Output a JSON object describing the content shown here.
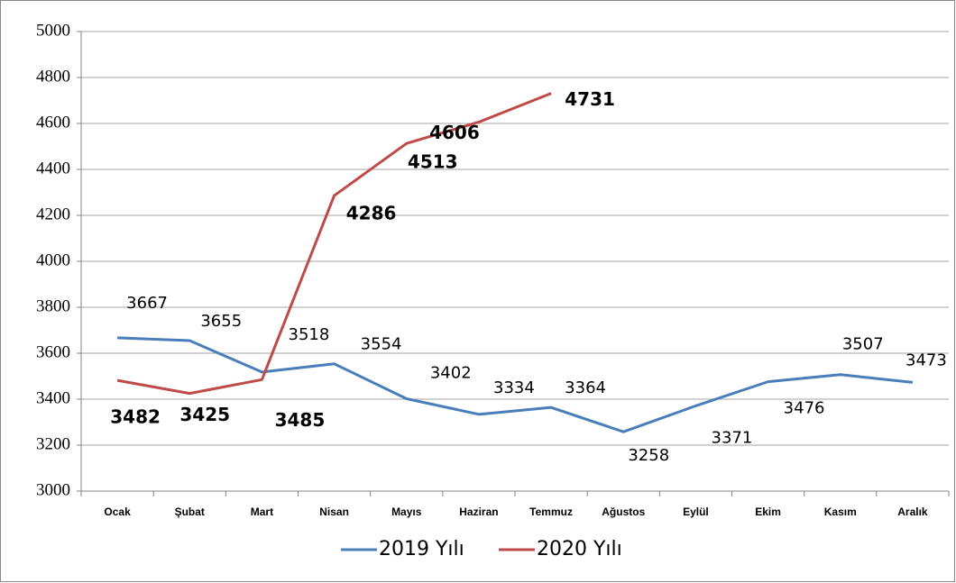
{
  "chart_data": {
    "type": "line",
    "categories": [
      "Ocak",
      "Şubat",
      "Mart",
      "Nisan",
      "Mayıs",
      "Haziran",
      "Temmuz",
      "Ağustos",
      "Eylül",
      "Ekim",
      "Kasım",
      "Aralık"
    ],
    "series": [
      {
        "name": "2019 Yılı",
        "color": "#4a7ebb",
        "values": [
          3667,
          3655,
          3518,
          3554,
          3402,
          3334,
          3364,
          3258,
          3371,
          3476,
          3507,
          3473
        ]
      },
      {
        "name": "2020 Yılı",
        "color": "#be4b48",
        "values": [
          3482,
          3425,
          3485,
          4286,
          4513,
          4606,
          4731,
          null,
          null,
          null,
          null,
          null
        ]
      }
    ],
    "ylim": [
      3000,
      5000
    ],
    "yticks": [
      3000,
      3200,
      3400,
      3600,
      3800,
      4000,
      4200,
      4400,
      4600,
      4800,
      5000
    ],
    "grid": true,
    "legend": "bottom"
  }
}
